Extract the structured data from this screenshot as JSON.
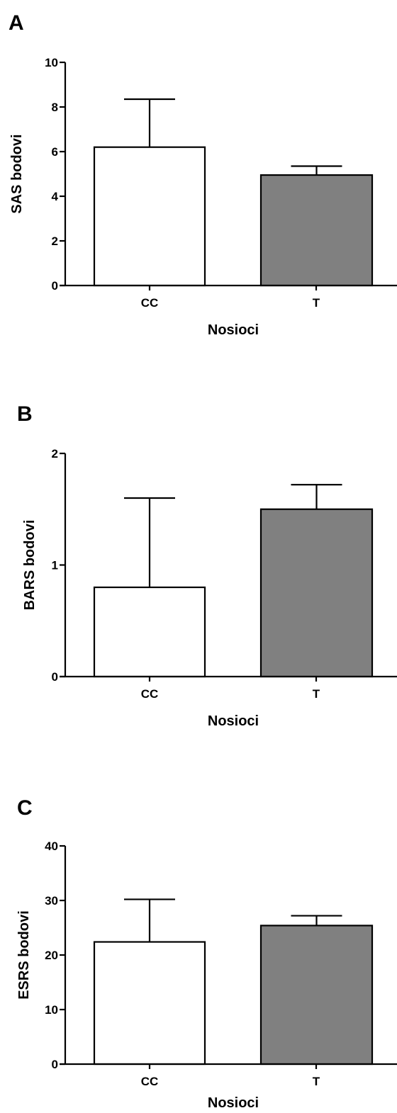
{
  "chart_data": [
    {
      "type": "bar",
      "panel": "A",
      "categories": [
        "CC",
        "T"
      ],
      "values": [
        6.2,
        4.95
      ],
      "errors": [
        2.15,
        0.4
      ],
      "colors": [
        "#ffffff",
        "#808080"
      ],
      "ylabel": "SAS bodovi",
      "xlabel": "Nosioci",
      "ylim": [
        0,
        10
      ],
      "yticks": [
        0,
        2,
        4,
        6,
        8,
        10
      ],
      "ytick_labels": [
        "0",
        "2",
        "4",
        "6",
        "8",
        "10"
      ],
      "grid": false
    },
    {
      "type": "bar",
      "panel": "B",
      "categories": [
        "CC",
        "T"
      ],
      "values": [
        0.8,
        1.5
      ],
      "errors": [
        0.8,
        0.22
      ],
      "colors": [
        "#ffffff",
        "#808080"
      ],
      "ylabel": "BARS bodovi",
      "xlabel": "Nosioci",
      "ylim": [
        0,
        2
      ],
      "yticks": [
        0,
        1,
        2
      ],
      "ytick_labels": [
        "0",
        "1",
        "2"
      ],
      "grid": false
    },
    {
      "type": "bar",
      "panel": "C",
      "categories": [
        "CC",
        "T"
      ],
      "values": [
        22.4,
        25.4
      ],
      "errors": [
        7.8,
        1.8
      ],
      "colors": [
        "#ffffff",
        "#808080"
      ],
      "ylabel": "ESRS bodovi",
      "xlabel": "Nosioci",
      "ylim": [
        0,
        40
      ],
      "yticks": [
        0,
        10,
        20,
        30,
        40
      ],
      "ytick_labels": [
        "0",
        "10",
        "20",
        "30",
        "40"
      ],
      "grid": false
    }
  ]
}
